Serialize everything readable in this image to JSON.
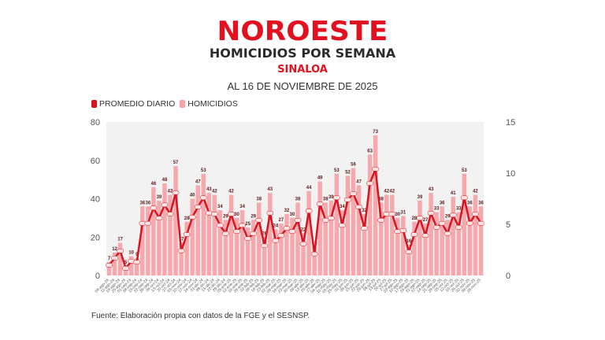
{
  "header": {
    "logo": "NOROESTE",
    "title": "HOMICIDIOS POR SEMANA",
    "subtitle": "SINALOA",
    "date": "AL 16 DE NOVIEMBRE DE 2025"
  },
  "legend": [
    {
      "label": "PROMEDIO DIARIO",
      "color": "#d7141f"
    },
    {
      "label": "HOMICIDIOS",
      "color": "#f4a3a8"
    }
  ],
  "footer": {
    "source": "Fuente: Elaboración propia con datos de la FGE y el SESNSP."
  },
  "colors": {
    "brand": "#e3101f",
    "bar": "#f6a8ad",
    "line": "#d7141f",
    "plot_bg": "#f2f2f2",
    "axis_text": "#555555"
  },
  "chart_data": {
    "type": "bar",
    "title": "HOMICIDIOS POR SEMANA",
    "subtitle": "SINALOA — AL 16 DE NOVIEMBRE DE 2025",
    "xlabel": "",
    "ylabel": "",
    "ylim": [
      0,
      80
    ],
    "y2lim": [
      0,
      15
    ],
    "yticks": [
      0,
      20,
      40,
      60,
      80
    ],
    "y2ticks": [
      0,
      5,
      10,
      15
    ],
    "legend_position": "top-left",
    "grid": false,
    "categories": [
      "04-ago-24",
      "11-ago-24",
      "18-ago-24",
      "25-ago-24",
      "01-sep-24",
      "08-sep-24",
      "15-sep-24",
      "22-sep-24",
      "29-sep-24",
      "06-oct-24",
      "13-oct-24",
      "20-oct-24",
      "27-oct-24",
      "03-nov-24",
      "10-nov-24",
      "17-nov-24",
      "24-nov-24",
      "01-dic-24",
      "08-dic-24",
      "15-dic-24",
      "22-dic-24",
      "29-dic-24",
      "05-ene-25",
      "12-ene-25",
      "19-ene-25",
      "26-ene-25",
      "02-feb-25",
      "09-feb-25",
      "16-feb-25",
      "23-feb-25",
      "02-mar-25",
      "09-mar-25",
      "16-mar-25",
      "23-mar-25",
      "30-mar-25",
      "06-abr-25",
      "13-abr-25",
      "20-abr-25",
      "27-abr-25",
      "04-may-25",
      "11-may-25",
      "18-may-25",
      "25-may-25",
      "01-jun-25",
      "08-jun-25",
      "15-jun-25",
      "22-jun-25",
      "29-jun-25",
      "06-jul-25",
      "13-jul-25",
      "20-jul-25",
      "27-jul-25",
      "03-ago-25",
      "10-ago-25",
      "17-ago-25",
      "24-ago-25",
      "31-ago-25",
      "07-sep-25",
      "14-sep-25",
      "21-sep-25",
      "28-sep-25",
      "05-oct-25",
      "12-oct-25",
      "19-oct-25",
      "26-oct-25",
      "02-nov-25",
      "09-nov-25",
      "16-nov-25"
    ],
    "series": [
      {
        "name": "HOMICIDIOS",
        "type": "bar",
        "axis": "left",
        "values": [
          7,
          12,
          17,
          5,
          10,
          9,
          36,
          36,
          46,
          39,
          48,
          42,
          57,
          17,
          28,
          40,
          47,
          53,
          43,
          42,
          34,
          29,
          42,
          30,
          34,
          25,
          29,
          38,
          20,
          43,
          24,
          27,
          32,
          30,
          38,
          22,
          44,
          15,
          49,
          38,
          39,
          53,
          34,
          52,
          56,
          47,
          32,
          63,
          73,
          38,
          42,
          42,
          30,
          31,
          16,
          28,
          39,
          27,
          43,
          33,
          36,
          29,
          41,
          33,
          53,
          36,
          42,
          36
        ]
      },
      {
        "name": "PROMEDIO DIARIO",
        "type": "line",
        "axis": "right",
        "values": [
          1.0,
          1.7,
          2.4,
          0.7,
          1.4,
          1.3,
          5.1,
          5.1,
          6.6,
          5.6,
          6.9,
          6.0,
          8.1,
          2.4,
          4.0,
          5.7,
          6.7,
          7.6,
          6.1,
          6.0,
          4.9,
          4.1,
          6.0,
          4.3,
          4.9,
          3.6,
          4.1,
          5.4,
          2.9,
          6.1,
          3.4,
          3.9,
          4.6,
          4.3,
          5.4,
          3.1,
          6.3,
          2.1,
          7.0,
          5.4,
          5.6,
          7.6,
          4.9,
          7.4,
          8.0,
          6.7,
          4.6,
          9.0,
          10.4,
          5.4,
          6.0,
          6.0,
          4.3,
          4.4,
          2.3,
          4.0,
          5.6,
          3.9,
          6.1,
          4.7,
          5.1,
          4.1,
          5.9,
          4.7,
          7.6,
          5.1,
          6.0,
          5.1
        ]
      }
    ]
  }
}
